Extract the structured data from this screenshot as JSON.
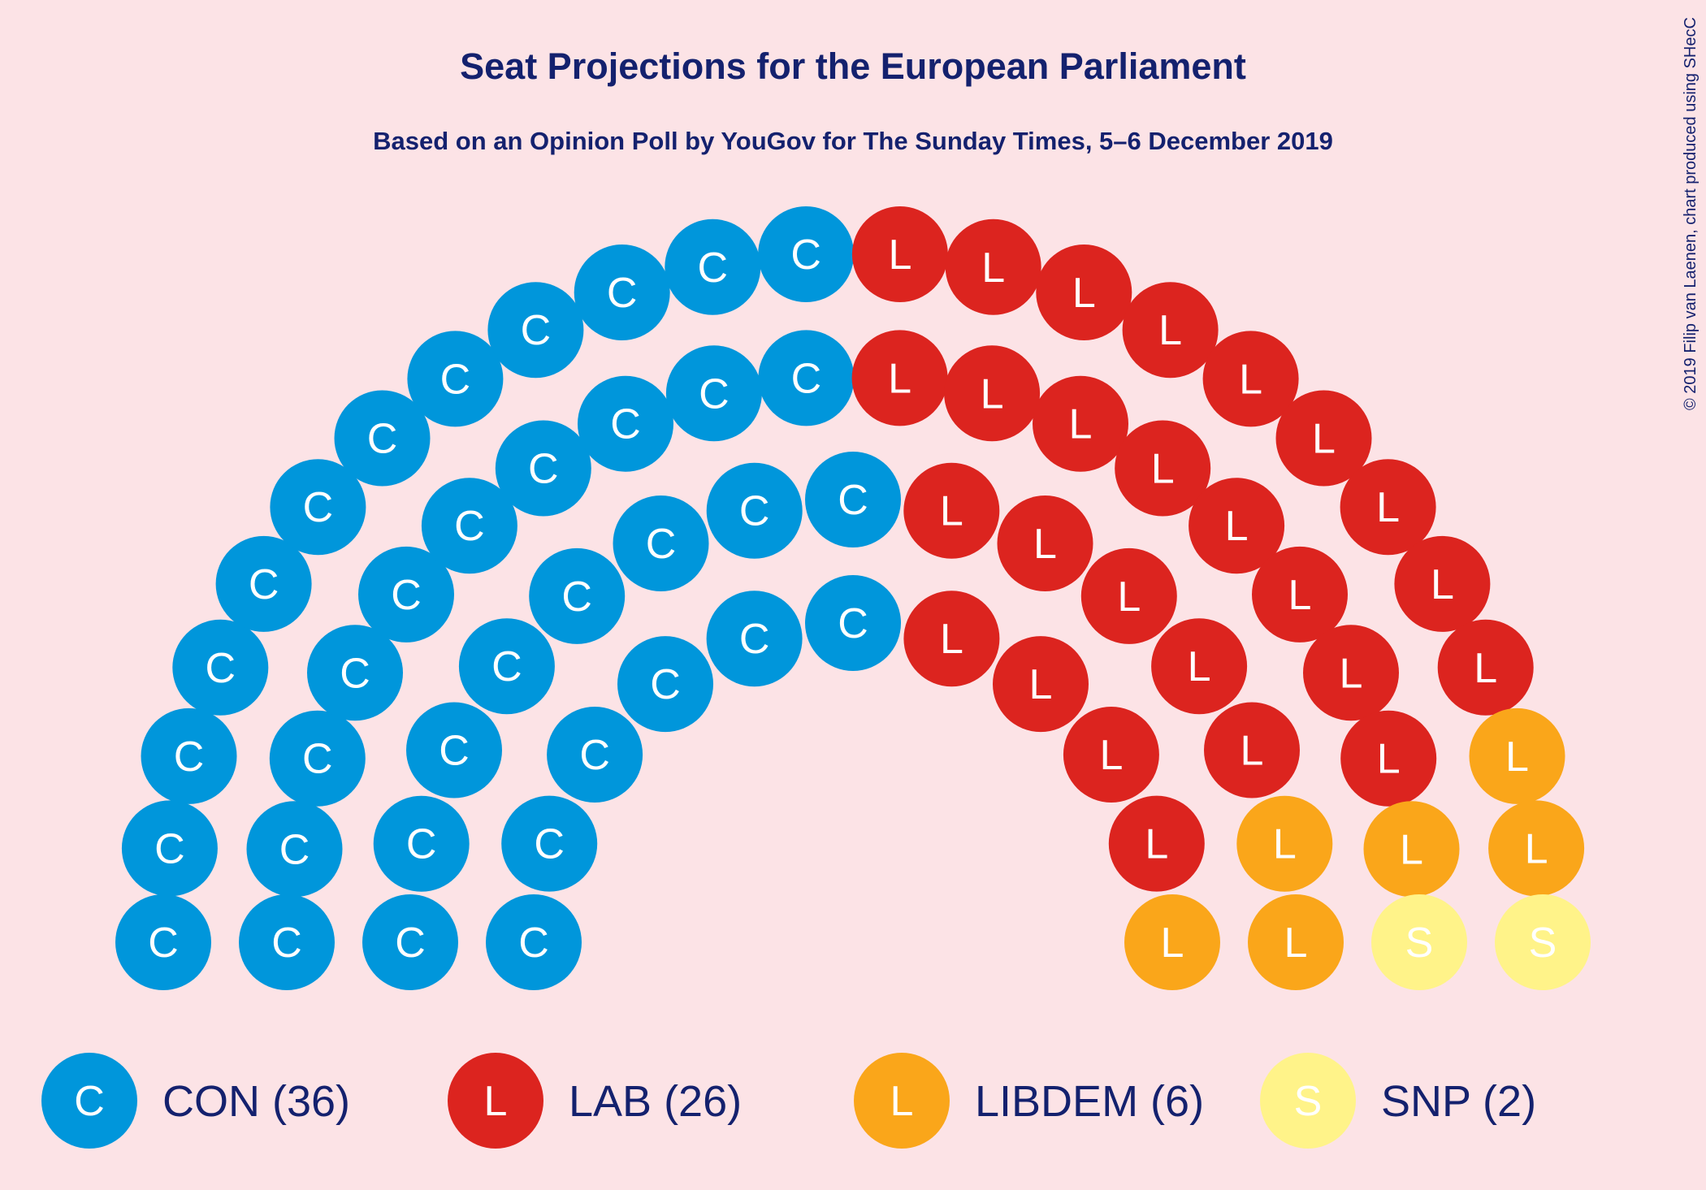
{
  "chart_data": {
    "type": "parliament",
    "title": "Seat Projections for the European Parliament",
    "subtitle": "Based on an Opinion Poll by YouGov for The Sunday Times, 5–6 December 2019",
    "credit": "© 2019 Filip van Laenen, chart produced using SHecC",
    "total_seats": 70,
    "series": [
      {
        "name": "CON",
        "letter": "C",
        "seats": 36,
        "color": "#0096db",
        "letter_color": "#ffffff",
        "legend": "CON (36)"
      },
      {
        "name": "LAB",
        "letter": "L",
        "seats": 26,
        "color": "#dc241f",
        "letter_color": "#ffffff",
        "legend": "LAB (26)"
      },
      {
        "name": "LIBDEM",
        "letter": "L",
        "seats": 6,
        "color": "#faa61a",
        "letter_color": "#ffffff",
        "legend": "LIBDEM (6)"
      },
      {
        "name": "SNP",
        "letter": "S",
        "seats": 2,
        "color": "#fff389",
        "letter_color": "#ffffff",
        "legend": "SNP (2)"
      }
    ],
    "text_color": "#14216e"
  }
}
